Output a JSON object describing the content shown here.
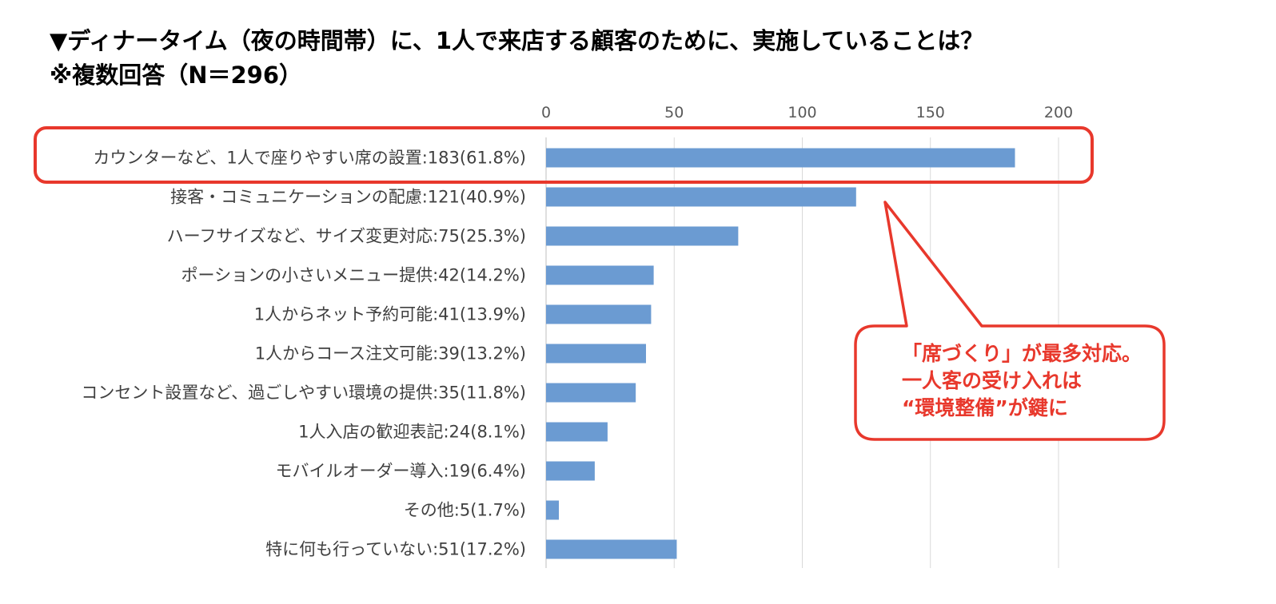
{
  "title_line1": "▼ディナータイム（夜の時間帯）に、1人で来店する顧客のために、実施していることは？",
  "title_line2": "※複数回答（N＝296）",
  "chart_data": {
    "type": "bar",
    "orientation": "horizontal",
    "title": "▼ディナータイム（夜の時間帯）に、1人で来店する顧客のために、実施していることは？ ※複数回答（N＝296）",
    "categories": [
      "カウンターなど、1人で座りやすい席の設置:183(61.8%)",
      "接客・コミュニケーションの配慮:121(40.9%)",
      "ハーフサイズなど、サイズ変更対応:75(25.3%)",
      "ポーションの小さいメニュー提供:42(14.2%)",
      "1人からネット予約可能:41(13.9%)",
      "1人からコース注文可能:39(13.2%)",
      "コンセント設置など、過ごしやすい環境の提供:35(11.8%)",
      "1人入店の歓迎表記:24(8.1%)",
      "モバイルオーダー導入:19(6.4%)",
      "その他:5(1.7%)",
      "特に何も行っていない:51(17.2%)"
    ],
    "values": [
      183,
      121,
      75,
      42,
      41,
      39,
      35,
      24,
      19,
      5,
      51
    ],
    "xlim": [
      0,
      200
    ],
    "ticks": [
      0,
      50,
      100,
      150,
      200
    ],
    "tick_labels": [
      "0",
      "50",
      "100",
      "150",
      "200"
    ],
    "axis_position": "top",
    "grid": true,
    "bar_color": "#6b9bd2",
    "highlight_index": 0,
    "highlight_color": "#e8382c",
    "annotation": {
      "lines": [
        "「席づくり」が最多対応。",
        "一人客の受け入れは",
        "“環境整備”が鍵に"
      ],
      "color": "#e8382c"
    }
  }
}
